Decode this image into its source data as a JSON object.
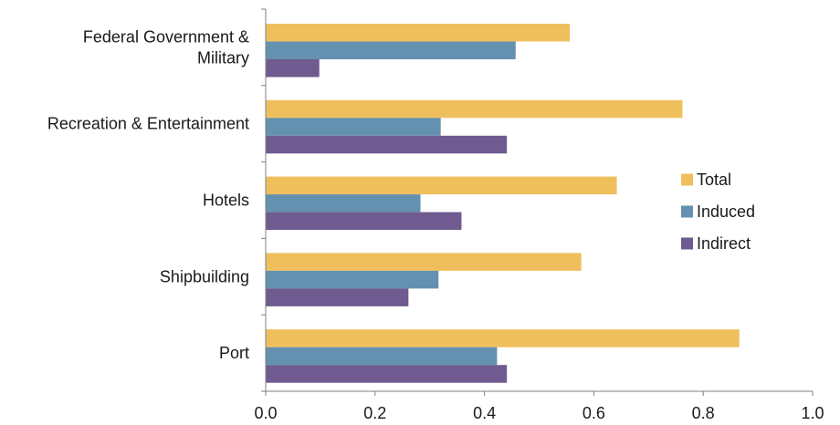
{
  "chart_data": {
    "type": "bar",
    "orientation": "horizontal",
    "title": "",
    "xlabel": "",
    "ylabel": "",
    "categories": [
      "Federal Government & Military",
      "Recreation & Entertainment",
      "Hotels",
      "Shipbuilding",
      "Port"
    ],
    "category_lines": [
      [
        "Federal Government &",
        "Military"
      ],
      [
        "Recreation & Entertainment"
      ],
      [
        "Hotels"
      ],
      [
        "Shipbuilding"
      ],
      [
        "Port"
      ]
    ],
    "series": [
      {
        "name": "Total",
        "color": "#F0BF5D",
        "values": [
          0.556,
          0.762,
          0.642,
          0.577,
          0.866
        ]
      },
      {
        "name": "Induced",
        "color": "#6491AF",
        "values": [
          0.457,
          0.32,
          0.283,
          0.316,
          0.423
        ]
      },
      {
        "name": "Indirect",
        "color": "#6F5B8F",
        "values": [
          0.098,
          0.441,
          0.358,
          0.261,
          0.441
        ]
      }
    ],
    "xlim": [
      0,
      1.0
    ],
    "xticks": [
      0.0,
      0.2,
      0.4,
      0.6,
      0.8,
      1.0
    ],
    "xtick_labels": [
      "0.0",
      "0.2",
      "0.4",
      "0.6",
      "0.8",
      "1.0"
    ],
    "grid": false,
    "legend": {
      "position": "right",
      "entries": [
        "Total",
        "Induced",
        "Indirect"
      ]
    }
  }
}
